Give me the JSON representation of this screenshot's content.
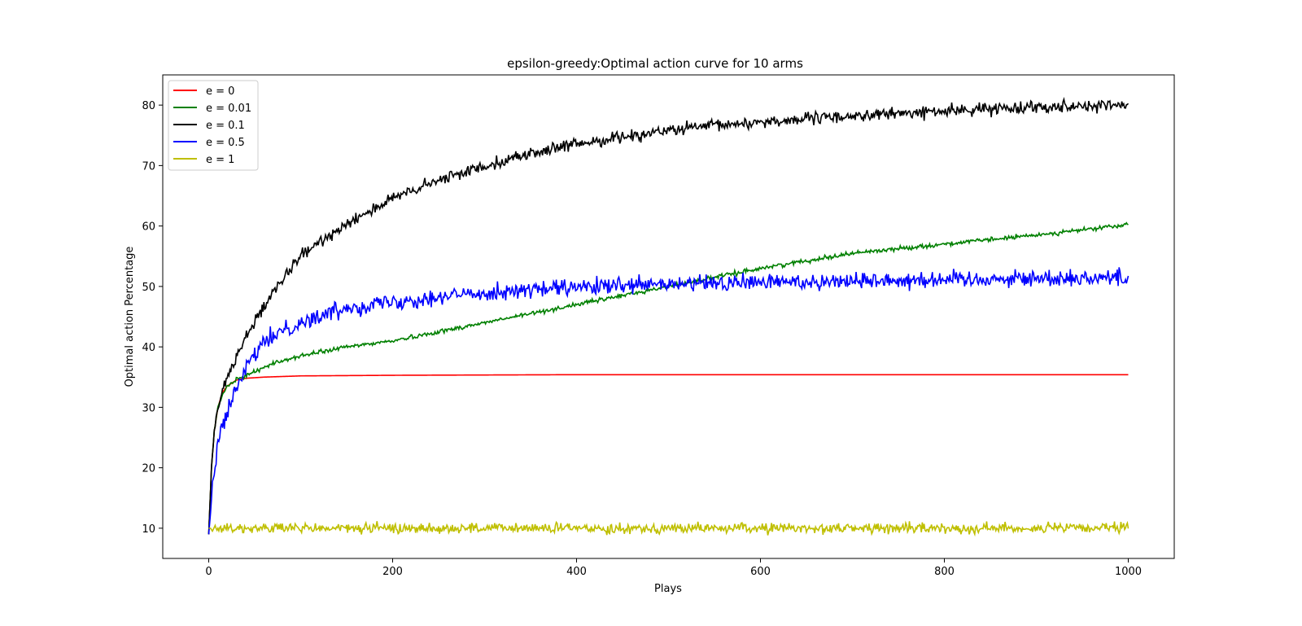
{
  "chart_data": {
    "type": "line",
    "title": "epsilon-greedy:Optimal action curve for 10 arms",
    "xlabel": "Plays",
    "ylabel": "Optimal action Percentage",
    "xlim": [
      -50,
      1050
    ],
    "ylim": [
      5,
      85
    ],
    "xticks": [
      0,
      200,
      400,
      600,
      800,
      1000
    ],
    "yticks": [
      10,
      20,
      30,
      40,
      50,
      60,
      70,
      80
    ],
    "grid": false,
    "legend_position": "top-left",
    "series": [
      {
        "name": "e = 0",
        "color": "#ff0000",
        "noise": 0,
        "points": [
          [
            0,
            9
          ],
          [
            3,
            20
          ],
          [
            6,
            26
          ],
          [
            10,
            30
          ],
          [
            15,
            32.5
          ],
          [
            20,
            33.5
          ],
          [
            30,
            34.5
          ],
          [
            40,
            34.8
          ],
          [
            60,
            35
          ],
          [
            100,
            35.2
          ],
          [
            200,
            35.3
          ],
          [
            400,
            35.4
          ],
          [
            700,
            35.4
          ],
          [
            1000,
            35.4
          ]
        ]
      },
      {
        "name": "e = 0.01",
        "color": "#008000",
        "noise": 0.25,
        "points": [
          [
            0,
            9
          ],
          [
            3,
            20
          ],
          [
            6,
            26
          ],
          [
            10,
            30
          ],
          [
            15,
            32
          ],
          [
            20,
            33.5
          ],
          [
            30,
            34.5
          ],
          [
            50,
            36
          ],
          [
            75,
            37.5
          ],
          [
            100,
            38.5
          ],
          [
            150,
            40
          ],
          [
            200,
            41
          ],
          [
            300,
            44
          ],
          [
            400,
            47
          ],
          [
            500,
            50
          ],
          [
            600,
            53
          ],
          [
            700,
            55.5
          ],
          [
            800,
            57
          ],
          [
            900,
            58.5
          ],
          [
            1000,
            60.2
          ]
        ]
      },
      {
        "name": "e = 0.1",
        "color": "#000000",
        "noise": 0.7,
        "points": [
          [
            0,
            9
          ],
          [
            3,
            20
          ],
          [
            6,
            26
          ],
          [
            10,
            30
          ],
          [
            15,
            33
          ],
          [
            20,
            35
          ],
          [
            30,
            38
          ],
          [
            40,
            42
          ],
          [
            50,
            44
          ],
          [
            75,
            50
          ],
          [
            100,
            55
          ],
          [
            150,
            60.5
          ],
          [
            200,
            64.5
          ],
          [
            250,
            67.5
          ],
          [
            300,
            70
          ],
          [
            350,
            72
          ],
          [
            400,
            73.5
          ],
          [
            450,
            74.8
          ],
          [
            500,
            75.8
          ],
          [
            550,
            76.6
          ],
          [
            600,
            77.2
          ],
          [
            700,
            78.2
          ],
          [
            800,
            79
          ],
          [
            900,
            79.8
          ],
          [
            1000,
            80
          ]
        ]
      },
      {
        "name": "e = 0.5",
        "color": "#0000ff",
        "noise": 1.0,
        "points": [
          [
            0,
            9
          ],
          [
            5,
            18
          ],
          [
            10,
            25
          ],
          [
            20,
            29
          ],
          [
            30,
            33
          ],
          [
            40,
            36
          ],
          [
            50,
            39
          ],
          [
            75,
            42.5
          ],
          [
            100,
            44
          ],
          [
            150,
            46.5
          ],
          [
            200,
            47.5
          ],
          [
            300,
            49
          ],
          [
            400,
            49.8
          ],
          [
            500,
            50.3
          ],
          [
            600,
            50.7
          ],
          [
            800,
            51.2
          ],
          [
            1000,
            51.5
          ]
        ]
      },
      {
        "name": "e = 1",
        "color": "#bfbf00",
        "noise": 0.6,
        "points": [
          [
            0,
            10
          ],
          [
            1000,
            10
          ]
        ]
      }
    ]
  }
}
